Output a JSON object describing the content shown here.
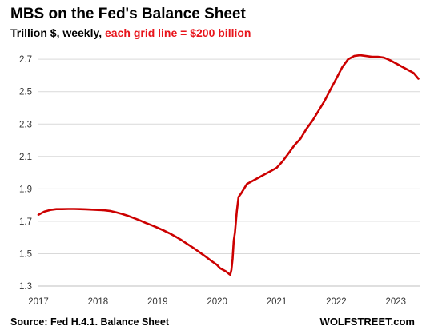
{
  "chart_data": {
    "type": "line",
    "title": "MBS on the Fed's Balance Sheet",
    "subtitle_prefix": "Trillion $, weekly, ",
    "subtitle_accent": "each grid line = $200 billion",
    "xlabel": "",
    "ylabel": "",
    "x_ticks": [
      "2017",
      "2018",
      "2019",
      "2020",
      "2021",
      "2022",
      "2023"
    ],
    "y_ticks": [
      "2.7",
      "2.5",
      "2.3",
      "2.1",
      "1.9",
      "1.7",
      "1.5",
      "1.3"
    ],
    "xlim": [
      2017.0,
      2023.4
    ],
    "ylim": [
      1.3,
      2.76
    ],
    "grid": true,
    "colors": {
      "series": "#cc0000",
      "accent": "#e8141b"
    },
    "series": [
      {
        "x": [
          2017.0,
          2017.1,
          2017.2,
          2017.3,
          2017.4,
          2017.5,
          2017.6,
          2017.7,
          2017.8,
          2017.9,
          2018.0,
          2018.1,
          2018.2,
          2018.3,
          2018.4,
          2018.5,
          2018.6,
          2018.7,
          2018.8,
          2018.9,
          2019.0,
          2019.1,
          2019.2,
          2019.3,
          2019.4,
          2019.5,
          2019.6,
          2019.7,
          2019.8,
          2019.9,
          2020.0,
          2020.05,
          2020.1,
          2020.15,
          2020.2,
          2020.22,
          2020.24,
          2020.26,
          2020.28,
          2020.3,
          2020.33,
          2020.36,
          2020.4,
          2020.45,
          2020.5,
          2020.6,
          2020.7,
          2020.8,
          2020.9,
          2021.0,
          2021.1,
          2021.2,
          2021.3,
          2021.4,
          2021.5,
          2021.6,
          2021.7,
          2021.8,
          2021.9,
          2022.0,
          2022.1,
          2022.2,
          2022.3,
          2022.4,
          2022.5,
          2022.6,
          2022.7,
          2022.8,
          2022.9,
          2023.0,
          2023.1,
          2023.2,
          2023.3,
          2023.38
        ],
        "values": [
          1.74,
          1.76,
          1.77,
          1.775,
          1.775,
          1.776,
          1.776,
          1.775,
          1.774,
          1.772,
          1.77,
          1.768,
          1.764,
          1.756,
          1.746,
          1.734,
          1.72,
          1.706,
          1.69,
          1.676,
          1.66,
          1.644,
          1.626,
          1.606,
          1.584,
          1.56,
          1.536,
          1.51,
          1.484,
          1.456,
          1.43,
          1.41,
          1.4,
          1.39,
          1.375,
          1.37,
          1.4,
          1.47,
          1.58,
          1.63,
          1.76,
          1.85,
          1.87,
          1.9,
          1.93,
          1.95,
          1.97,
          1.99,
          2.01,
          2.03,
          2.07,
          2.12,
          2.17,
          2.21,
          2.27,
          2.32,
          2.38,
          2.44,
          2.51,
          2.58,
          2.65,
          2.7,
          2.72,
          2.725,
          2.72,
          2.715,
          2.715,
          2.71,
          2.695,
          2.675,
          2.655,
          2.635,
          2.615,
          2.58
        ]
      }
    ]
  },
  "footer": {
    "source": "Source: Fed H.4.1. Balance Sheet",
    "brand": "WOLFSTREET.com"
  }
}
